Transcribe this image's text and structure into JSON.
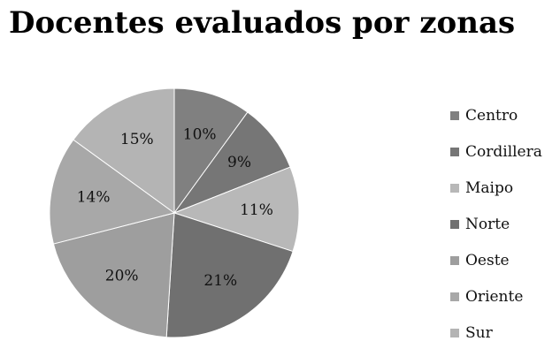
{
  "chart_data": {
    "type": "pie",
    "title": "Docentes evaluados por zonas",
    "categories": [
      "Centro",
      "Cordillera",
      "Maipo",
      "Norte",
      "Oeste",
      "Oriente",
      "Sur"
    ],
    "values": [
      10,
      9,
      11,
      21,
      20,
      14,
      15
    ],
    "value_labels": [
      "10%",
      "9%",
      "11%",
      "21%",
      "20%",
      "14%",
      "15%"
    ],
    "unit": "%",
    "colors": [
      "#808080",
      "#767676",
      "#b8b8b8",
      "#707070",
      "#9e9e9e",
      "#a8a8a8",
      "#b4b4b4"
    ],
    "legend_position": "right",
    "start_angle": "12 o'clock",
    "direction": "clockwise"
  }
}
